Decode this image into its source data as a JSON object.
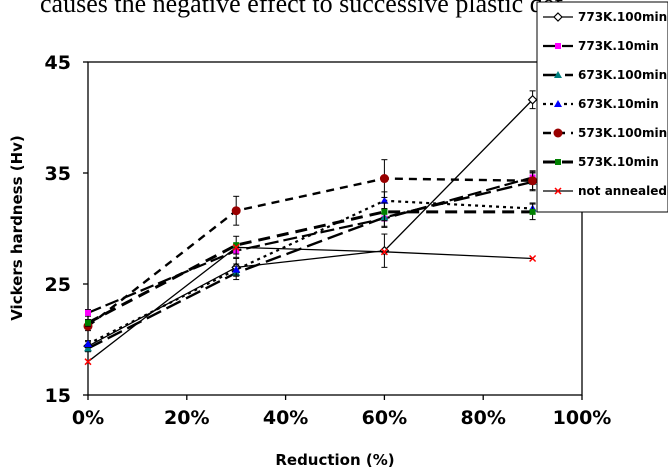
{
  "top_text": "causes the negative effect to successive plastic def",
  "chart_data": {
    "type": "line",
    "x": [
      0,
      30,
      60,
      90
    ],
    "xlabel": "Reduction (%)",
    "ylabel": "Vickers hardness (Hv)",
    "xlim": [
      0,
      100
    ],
    "ylim": [
      15,
      45
    ],
    "x_ticks": [
      "0%",
      "20%",
      "40%",
      "60%",
      "80%",
      "100%"
    ],
    "y_ticks": [
      "15",
      "25",
      "35",
      "45"
    ],
    "grid": false,
    "legend_position": "top-right",
    "series": [
      {
        "name": "773K.100min",
        "values": [
          19.4,
          26.5,
          28.0,
          41.6
        ],
        "color": "#000000",
        "marker": "diamond",
        "dash": "solid",
        "error": [
          0.4,
          0.8,
          1.5,
          0.8
        ]
      },
      {
        "name": "773K.10min",
        "values": [
          22.4,
          28.0,
          30.9,
          34.6
        ],
        "color": "#ff00ff",
        "marker": "square",
        "dash": "long",
        "error": [
          0.3,
          0.6,
          0.8,
          0.6
        ]
      },
      {
        "name": "673K.100min",
        "values": [
          19.2,
          26.0,
          31.0,
          34.2
        ],
        "color": "#008080",
        "marker": "triangle",
        "dash": "longdash",
        "error": [
          0.3,
          0.6,
          0.8,
          0.8
        ]
      },
      {
        "name": "673K.10min",
        "values": [
          19.6,
          26.3,
          32.5,
          31.8
        ],
        "color": "#0000ff",
        "marker": "triangle",
        "dash": "dot",
        "error": [
          0.3,
          0.5,
          0.8,
          0.5
        ]
      },
      {
        "name": "573K.100min",
        "values": [
          21.2,
          31.6,
          34.5,
          34.3
        ],
        "color": "#990000",
        "marker": "circle",
        "dash": "dash",
        "error": [
          0.4,
          1.3,
          1.7,
          0.8
        ]
      },
      {
        "name": "573K.10min",
        "values": [
          21.5,
          28.5,
          31.5,
          31.5
        ],
        "color": "#008000",
        "marker": "square",
        "dash": "heavydash",
        "error": [
          0.3,
          0.8,
          0.8,
          0.7
        ]
      },
      {
        "name": "not annealed",
        "values": [
          18.0,
          28.3,
          27.9,
          27.3
        ],
        "color": "#ff0000",
        "marker": "x",
        "dash": "solid",
        "error": [
          0,
          0,
          0,
          0
        ]
      }
    ]
  }
}
